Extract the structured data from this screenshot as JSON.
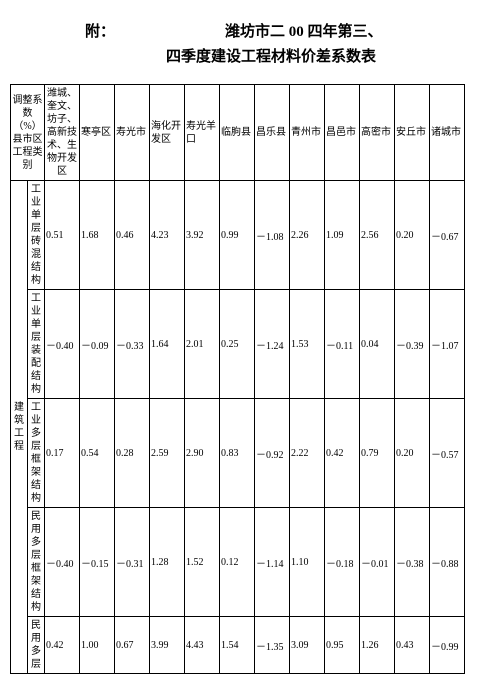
{
  "title": {
    "prefix": "附：",
    "part1": "潍坊市二 00 四年第三、",
    "part2": "四季度建设工程材料价差系数表"
  },
  "header": {
    "col1": "调整系数（%）县市区工程类别",
    "regions": [
      "潍城、奎文、坊子、高新技术、生物开发区",
      "寒亭区",
      "寿光市",
      "海化开发区",
      "寿光羊口",
      "临朐县",
      "昌乐县",
      "青州市",
      "昌邑市",
      "高密市",
      "安丘市",
      "诸城市"
    ]
  },
  "category_group": "建筑工程",
  "rows": [
    {
      "label": "工业单层砖混结构",
      "values": [
        "0.51",
        "1.68",
        "0.46",
        "4.23",
        "3.92",
        "0.99",
        "－1.08",
        "2.26",
        "1.09",
        "2.56",
        "0.20",
        "－0.67"
      ]
    },
    {
      "label": "工业单层装配结构",
      "values": [
        "－0.40",
        "－0.09",
        "－0.33",
        "1.64",
        "2.01",
        "0.25",
        "－1.24",
        "1.53",
        "－0.11",
        "0.04",
        "－0.39",
        "－1.07"
      ]
    },
    {
      "label": "工业多层框架结构",
      "values": [
        "0.17",
        "0.54",
        "0.28",
        "2.59",
        "2.90",
        "0.83",
        "－0.92",
        "2.22",
        "0.42",
        "0.79",
        "0.20",
        "－0.57"
      ]
    },
    {
      "label": "民用多层框架结构",
      "values": [
        "－0.40",
        "－0.15",
        "－0.31",
        "1.28",
        "1.52",
        "0.12",
        "－1.14",
        "1.10",
        "－0.18",
        "－0.01",
        "－0.38",
        "－0.88"
      ]
    },
    {
      "label": "民用多层",
      "values": [
        "0.42",
        "1.00",
        "0.67",
        "3.99",
        "4.43",
        "1.54",
        "－1.35",
        "3.09",
        "0.95",
        "1.26",
        "0.43",
        "－0.99"
      ]
    }
  ]
}
